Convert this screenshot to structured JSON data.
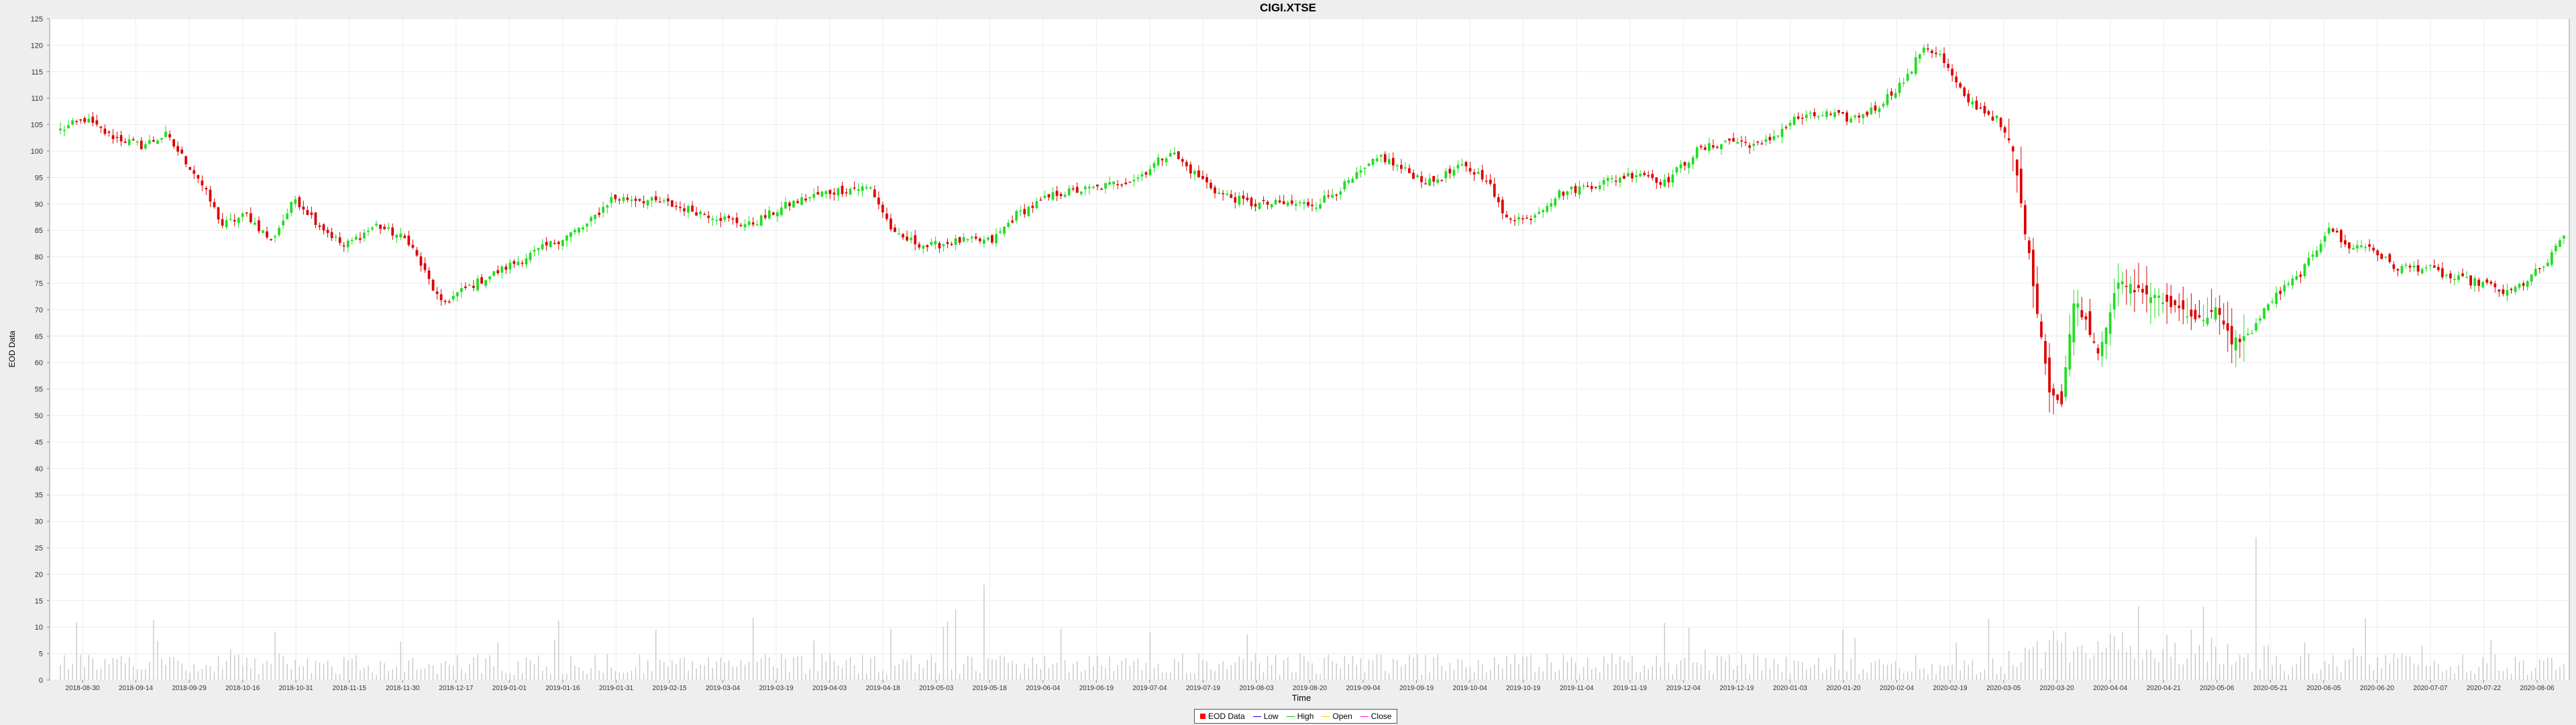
{
  "chart_data": {
    "type": "candlestick",
    "title": "CIGI.XTSE",
    "xlabel": "Time",
    "ylabel": "EOD Data",
    "ylim": [
      0,
      125
    ],
    "yticks": [
      0,
      5,
      10,
      15,
      20,
      25,
      30,
      35,
      40,
      45,
      50,
      55,
      60,
      65,
      70,
      75,
      80,
      85,
      90,
      95,
      100,
      105,
      110,
      115,
      120,
      125
    ],
    "x_tick_labels": [
      "2018-08-30",
      "2018-09-14",
      "2018-09-29",
      "2018-10-16",
      "2018-10-31",
      "2018-11-15",
      "2018-11-30",
      "2018-12-17",
      "2019-01-01",
      "2019-01-16",
      "2019-01-31",
      "2019-02-15",
      "2019-03-04",
      "2019-03-19",
      "2019-04-03",
      "2019-04-18",
      "2019-05-03",
      "2019-05-18",
      "2019-06-04",
      "2019-06-19",
      "2019-07-04",
      "2019-07-19",
      "2019-08-03",
      "2019-08-20",
      "2019-09-04",
      "2019-09-19",
      "2019-10-04",
      "2019-10-19",
      "2019-11-04",
      "2019-11-19",
      "2019-12-04",
      "2019-12-19",
      "2020-01-03",
      "2020-01-20",
      "2020-02-04",
      "2020-02-19",
      "2020-03-05",
      "2020-03-20",
      "2020-04-04",
      "2020-04-21",
      "2020-05-06",
      "2020-05-21",
      "2020-06-05",
      "2020-06-20",
      "2020-07-07",
      "2020-07-22",
      "2020-08-06"
    ],
    "grid": true,
    "legend": {
      "position": "bottom-center",
      "entries": [
        {
          "name": "EOD Data",
          "color": "#ff0000"
        },
        {
          "name": "Low",
          "color": "#0000ff"
        },
        {
          "name": "High",
          "color": "#00cc00"
        },
        {
          "name": "Open",
          "color": "#ffcc00"
        },
        {
          "name": "Close",
          "color": "#ff00ff"
        }
      ]
    },
    "colors": {
      "up": "#22dd22",
      "down": "#dd0000",
      "volume": "#c8c8c8"
    },
    "close_anchors": [
      [
        0,
        104
      ],
      [
        6,
        106
      ],
      [
        12,
        103
      ],
      [
        20,
        101
      ],
      [
        26,
        103
      ],
      [
        34,
        95
      ],
      [
        40,
        86
      ],
      [
        46,
        88
      ],
      [
        52,
        83
      ],
      [
        58,
        91
      ],
      [
        64,
        86
      ],
      [
        70,
        82
      ],
      [
        78,
        86
      ],
      [
        86,
        83
      ],
      [
        94,
        71
      ],
      [
        100,
        74
      ],
      [
        110,
        78
      ],
      [
        120,
        82
      ],
      [
        130,
        86
      ],
      [
        136,
        91
      ],
      [
        142,
        91
      ],
      [
        150,
        90
      ],
      [
        160,
        88
      ],
      [
        170,
        86
      ],
      [
        180,
        90
      ],
      [
        188,
        92
      ],
      [
        196,
        93
      ],
      [
        200,
        93
      ],
      [
        206,
        84
      ],
      [
        214,
        82
      ],
      [
        222,
        83
      ],
      [
        230,
        83
      ],
      [
        236,
        88
      ],
      [
        246,
        92
      ],
      [
        256,
        93
      ],
      [
        266,
        95
      ],
      [
        274,
        100
      ],
      [
        278,
        97
      ],
      [
        286,
        92
      ],
      [
        294,
        90
      ],
      [
        302,
        90
      ],
      [
        310,
        90
      ],
      [
        318,
        94
      ],
      [
        326,
        99
      ],
      [
        330,
        97
      ],
      [
        338,
        94
      ],
      [
        346,
        97
      ],
      [
        352,
        95
      ],
      [
        356,
        88
      ],
      [
        362,
        87
      ],
      [
        370,
        92
      ],
      [
        380,
        94
      ],
      [
        390,
        96
      ],
      [
        396,
        94
      ],
      [
        404,
        100
      ],
      [
        412,
        102
      ],
      [
        420,
        101
      ],
      [
        428,
        106
      ],
      [
        436,
        107
      ],
      [
        442,
        106
      ],
      [
        448,
        108
      ],
      [
        456,
        114
      ],
      [
        460,
        120
      ],
      [
        464,
        118
      ],
      [
        470,
        110
      ],
      [
        474,
        108
      ],
      [
        478,
        106
      ],
      [
        482,
        100
      ],
      [
        485,
        85
      ],
      [
        488,
        70
      ],
      [
        491,
        55
      ],
      [
        494,
        52
      ],
      [
        497,
        72
      ],
      [
        500,
        68
      ],
      [
        503,
        62
      ],
      [
        508,
        75
      ],
      [
        512,
        74
      ],
      [
        518,
        72
      ],
      [
        524,
        70
      ],
      [
        528,
        68
      ],
      [
        532,
        70
      ],
      [
        536,
        64
      ],
      [
        540,
        65
      ],
      [
        546,
        72
      ],
      [
        552,
        76
      ],
      [
        556,
        80
      ],
      [
        560,
        86
      ],
      [
        564,
        82
      ],
      [
        570,
        82
      ],
      [
        576,
        78
      ],
      [
        584,
        78
      ],
      [
        590,
        76
      ],
      [
        598,
        75
      ],
      [
        604,
        73
      ],
      [
        608,
        75
      ],
      [
        614,
        79
      ],
      [
        618,
        84
      ]
    ]
  }
}
